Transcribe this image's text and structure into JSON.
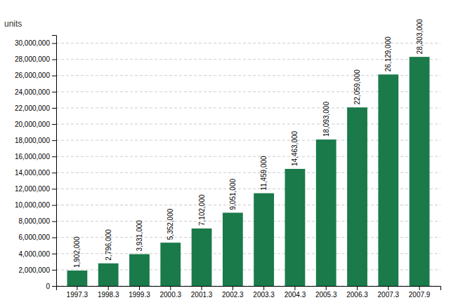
{
  "chart_data": {
    "type": "bar",
    "ylabel": "units",
    "categories": [
      "1997.3",
      "1998.3",
      "1999.3",
      "2000.3",
      "2001.3",
      "2002.3",
      "2003.3",
      "2004.3",
      "2005.3",
      "2006.3",
      "2007.3",
      "2007.9"
    ],
    "values": [
      1902000,
      2796000,
      3931000,
      5352000,
      7102000,
      9051000,
      11459000,
      14463000,
      18093000,
      22059000,
      26129000,
      28303000
    ],
    "value_labels": [
      "1,902,000",
      "2,796,000",
      "3,931,000",
      "5,352,000",
      "7,102,000",
      "9,051,000",
      "11,459,000",
      "14,463,000",
      "18,093,000",
      "22,059,000",
      "26,129,000",
      "28,303,000"
    ],
    "data_labels": true,
    "color": "#1a7a4a",
    "ylim": [
      0,
      31000000
    ],
    "yticks": [
      0,
      {
        "value": 2000000,
        "label": "2,000,000"
      },
      {
        "value": 4000000,
        "label": "4,000,000"
      },
      {
        "value": 6000000,
        "label": "6,000,000"
      },
      {
        "value": 8000000,
        "label": "8,000,000"
      },
      {
        "value": 10000000,
        "label": "10,000,000"
      },
      {
        "value": 12000000,
        "label": "12,000,000"
      },
      {
        "value": 14000000,
        "label": "14,000,000"
      },
      {
        "value": 16000000,
        "label": "16,000,000"
      },
      {
        "value": 18000000,
        "label": "18,000,000"
      },
      {
        "value": 20000000,
        "label": "20,000,000"
      },
      {
        "value": 22000000,
        "label": "22,000,000"
      },
      {
        "value": 24000000,
        "label": "24,000,000"
      },
      {
        "value": 26000000,
        "label": "26,000,000"
      },
      {
        "value": 28000000,
        "label": "28,000,000"
      },
      {
        "value": 30000000,
        "label": "30,000,000"
      }
    ],
    "grid": true
  }
}
